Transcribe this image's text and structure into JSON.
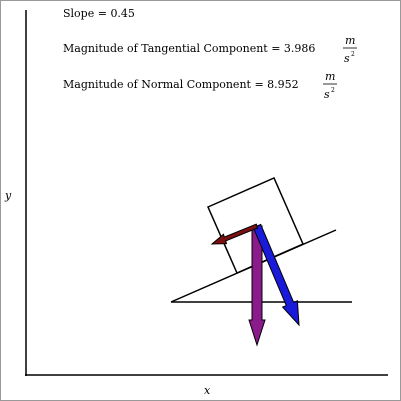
{
  "annotations": [
    {
      "text": "Slope = 0.45"
    },
    {
      "text": "Magnitude of Tangential Component = 3.986",
      "unit_numerator": "m",
      "unit_denominator": "s",
      "unit_exponent": "2"
    },
    {
      "text": "Magnitude of Normal Component = 8.952",
      "unit_numerator": "m",
      "unit_denominator": "s",
      "unit_exponent": "2"
    }
  ],
  "axes": {
    "x_label": "x",
    "y_label": "y"
  }
}
